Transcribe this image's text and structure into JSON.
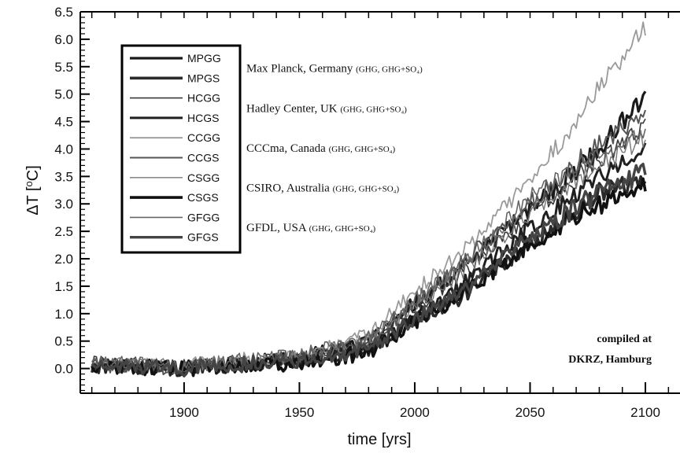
{
  "chart_data": {
    "type": "line",
    "title": "",
    "xlabel": "time [yrs]",
    "ylabel_main": "ΔT [",
    "ylabel_sup": "o",
    "ylabel_end": "C]",
    "xlim": [
      1855,
      2115
    ],
    "ylim": [
      -0.45,
      6.5
    ],
    "xticks": [
      1900,
      1950,
      2000,
      2050,
      2100
    ],
    "yticks": [
      "0.0",
      "0.5",
      "1.0",
      "1.5",
      "2.0",
      "2.5",
      "3.0",
      "3.5",
      "4.0",
      "4.5",
      "5.0",
      "5.5",
      "6.0",
      "6.5"
    ],
    "grid": false,
    "legend_position": "top-left",
    "legend": {
      "codes": [
        "MPGG",
        "MPGS",
        "HCGG",
        "HCGS",
        "CCGG",
        "CCGS",
        "CSGG",
        "CSGS",
        "GFGG",
        "GFGS"
      ],
      "institutions": [
        {
          "name": "Max Planck, Germany",
          "note": "(GHG, GHG+SO₄)"
        },
        {
          "name": "Hadley Center, UK",
          "note": "(GHG, GHG+SO₄)"
        },
        {
          "name": "CCCma, Canada",
          "note": "(GHG, GHG+SO₄)"
        },
        {
          "name": "CSIRO, Australia",
          "note": "(GHG, GHG+SO₄)"
        },
        {
          "name": "GFDL, USA",
          "note": "(GHG, GHG+SO₄)"
        }
      ]
    },
    "annotation": [
      "compiled at",
      "DKRZ, Hamburg"
    ],
    "series": [
      {
        "code": "MPGG",
        "color": "#1a1a1a",
        "width": 3.2,
        "x": [
          1860,
          1900,
          1950,
          1980,
          2000,
          2020,
          2050,
          2080,
          2100
        ],
        "y": [
          0.05,
          0.0,
          0.2,
          0.5,
          1.2,
          1.8,
          2.9,
          4.0,
          5.0
        ]
      },
      {
        "code": "MPGS",
        "color": "#2a2a2a",
        "width": 3.6,
        "x": [
          1860,
          1900,
          1950,
          1980,
          2000,
          2020,
          2050,
          2080,
          2100
        ],
        "y": [
          0.05,
          0.0,
          0.15,
          0.35,
          0.9,
          1.3,
          2.3,
          3.2,
          3.5
        ]
      },
      {
        "code": "HCGG",
        "color": "#3a3a3a",
        "width": 1.6,
        "x": [
          1860,
          1900,
          1950,
          1980,
          2000,
          2020,
          2050,
          2080,
          2100
        ],
        "y": [
          0.1,
          0.05,
          0.2,
          0.45,
          1.1,
          1.7,
          2.8,
          3.8,
          4.4
        ]
      },
      {
        "code": "HCGS",
        "color": "#1f1f1f",
        "width": 3.0,
        "x": [
          1860,
          1900,
          1950,
          1980,
          2000,
          2020,
          2050,
          2080,
          2100
        ],
        "y": [
          0.05,
          0.0,
          0.15,
          0.4,
          0.95,
          1.5,
          2.6,
          3.5,
          4.1
        ]
      },
      {
        "code": "CCGG",
        "color": "#9a9a9a",
        "width": 1.8,
        "x": [
          1860,
          1900,
          1950,
          1980,
          2000,
          2020,
          2050,
          2080,
          2100
        ],
        "y": [
          0.05,
          0.05,
          0.25,
          0.6,
          1.4,
          2.1,
          3.4,
          5.1,
          6.2
        ]
      },
      {
        "code": "CCGS",
        "color": "#555555",
        "width": 2.0,
        "x": [
          1860,
          1900,
          1950,
          1980,
          2000,
          2020,
          2050,
          2080,
          2100
        ],
        "y": [
          0.05,
          0.0,
          0.2,
          0.5,
          1.2,
          1.9,
          3.0,
          4.1,
          4.6
        ]
      },
      {
        "code": "CSGG",
        "color": "#777777",
        "width": 1.4,
        "x": [
          1860,
          1900,
          1950,
          1980,
          2000,
          2020,
          2050,
          2080,
          2100
        ],
        "y": [
          0.1,
          0.05,
          0.2,
          0.5,
          1.15,
          1.75,
          2.85,
          3.7,
          4.2
        ]
      },
      {
        "code": "CSGS",
        "color": "#111111",
        "width": 3.6,
        "x": [
          1860,
          1900,
          1950,
          1980,
          2000,
          2020,
          2050,
          2080,
          2100
        ],
        "y": [
          0.05,
          0.0,
          0.1,
          0.3,
          0.85,
          1.35,
          2.3,
          3.0,
          3.4
        ]
      },
      {
        "code": "GFGG",
        "color": "#666666",
        "width": 1.6,
        "x": [
          1860,
          1900,
          1950,
          1980,
          2000,
          2020,
          2050,
          2080,
          2100
        ],
        "y": [
          0.1,
          0.05,
          0.25,
          0.55,
          1.25,
          1.85,
          3.1,
          3.9,
          4.3
        ]
      },
      {
        "code": "GFGS",
        "color": "#444444",
        "width": 3.4,
        "x": [
          1860,
          1900,
          1950,
          1980,
          2000,
          2020,
          2050,
          2080,
          2100
        ],
        "y": [
          0.05,
          0.0,
          0.15,
          0.35,
          0.9,
          1.4,
          2.4,
          3.2,
          3.6
        ]
      }
    ]
  }
}
